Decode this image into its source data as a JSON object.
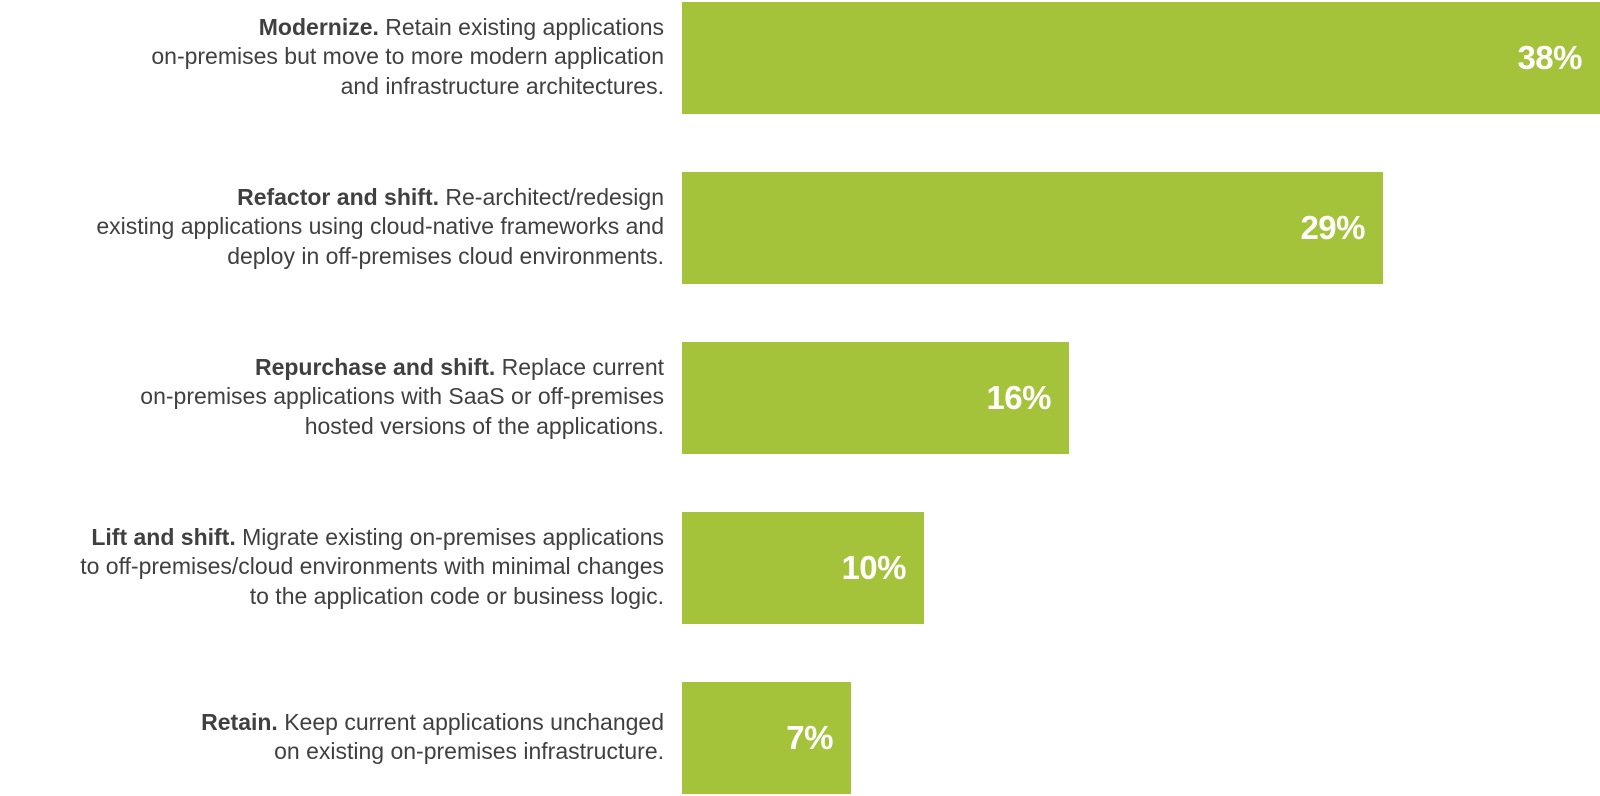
{
  "colors": {
    "bar": "#a4c23a",
    "label_text": "#404040",
    "value_text": "#ffffff"
  },
  "chart_data": {
    "type": "bar",
    "orientation": "horizontal",
    "unit": "%",
    "categories": [
      "Modernize.",
      "Refactor and shift.",
      "Repurchase and shift.",
      "Lift and shift.",
      "Retain."
    ],
    "values": [
      38,
      29,
      16,
      10,
      7
    ],
    "value_labels": [
      "38%",
      "29%",
      "16%",
      "10%",
      "7%"
    ],
    "descriptions": [
      [
        "Retain existing applications",
        "on-premises but move to more modern application",
        "and infrastructure architectures."
      ],
      [
        "Re-architect/redesign",
        "existing applications using cloud-native frameworks and",
        "deploy in off-premises cloud environments."
      ],
      [
        "Replace current",
        "on-premises applications with SaaS or off-premises",
        "hosted versions of the applications."
      ],
      [
        "Migrate existing on-premises applications",
        "to off-premises/cloud environments with minimal changes",
        "to the application code or business logic."
      ],
      [
        "Keep current applications unchanged",
        "on existing on-premises infrastructure."
      ]
    ],
    "grid": false,
    "legend": "none"
  }
}
